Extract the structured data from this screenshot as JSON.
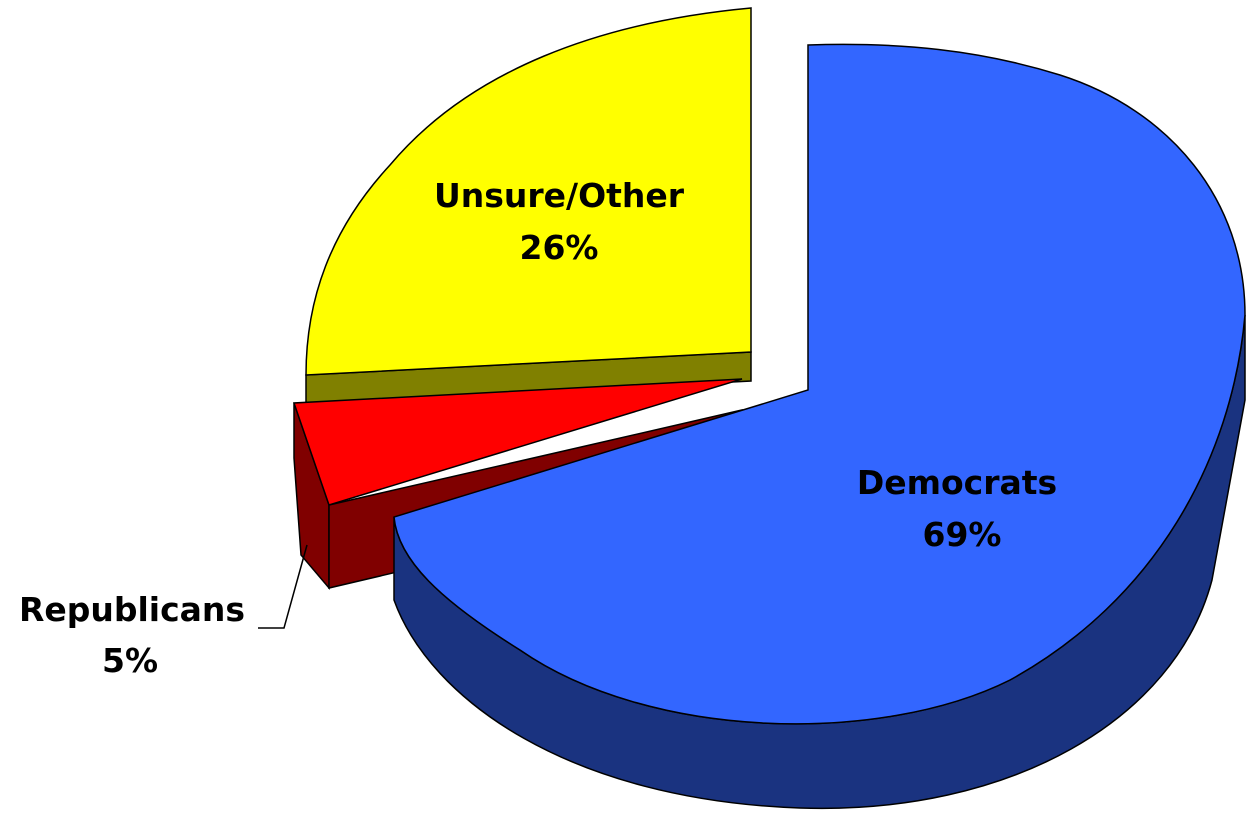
{
  "chart_data": {
    "type": "pie",
    "style": "3d-exploded",
    "title": "",
    "slices": [
      {
        "name": "Democrats",
        "value": 69,
        "label": "69%",
        "color": "#3366FF",
        "side_color": "#1A3380"
      },
      {
        "name": "Republicans",
        "value": 5,
        "label": "5%",
        "color": "#FF0000",
        "side_color": "#800000"
      },
      {
        "name": "Unsure/Other",
        "value": 26,
        "label": "26%",
        "color": "#FFFF00",
        "side_color": "#808000"
      }
    ]
  }
}
